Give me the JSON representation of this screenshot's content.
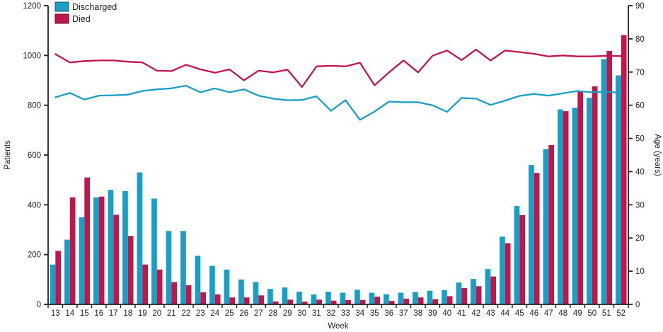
{
  "chart_data": {
    "type": "combo_bar_line",
    "title": "",
    "xlabel": "Week",
    "x": [
      13,
      14,
      15,
      16,
      17,
      18,
      19,
      20,
      21,
      22,
      23,
      24,
      25,
      26,
      27,
      28,
      29,
      30,
      31,
      32,
      33,
      34,
      35,
      36,
      37,
      38,
      39,
      40,
      41,
      42,
      43,
      44,
      45,
      46,
      47,
      48,
      49,
      50,
      51,
      52
    ],
    "left_axis": {
      "label": "Patients",
      "range": [
        0,
        1200
      ],
      "ticks": [
        0,
        200,
        400,
        600,
        800,
        1000,
        1200
      ]
    },
    "right_axis": {
      "label": "Age (years)",
      "range": [
        0,
        90
      ],
      "ticks": [
        0,
        10,
        20,
        30,
        40,
        50,
        60,
        70,
        80,
        90
      ]
    },
    "legend": {
      "position": "top-left",
      "entries": [
        "Discharged",
        "Died"
      ]
    },
    "bar_series": [
      {
        "name": "Discharged",
        "axis": "left",
        "color": "#1b9ec4",
        "values": [
          160,
          260,
          350,
          430,
          460,
          455,
          530,
          425,
          295,
          295,
          195,
          155,
          140,
          100,
          90,
          62,
          68,
          51,
          40,
          51,
          47,
          59,
          47,
          41,
          47,
          50,
          55,
          57,
          88,
          102,
          142,
          272,
          395,
          560,
          624,
          783,
          790,
          830,
          985,
          920
        ]
      },
      {
        "name": "Died",
        "axis": "left",
        "color": "#c0164c",
        "values": [
          215,
          430,
          510,
          433,
          360,
          275,
          160,
          140,
          90,
          77,
          49,
          40,
          28,
          28,
          36,
          12,
          19,
          11,
          19,
          15,
          17,
          18,
          31,
          14,
          23,
          28,
          21,
          33,
          65,
          73,
          112,
          246,
          359,
          528,
          640,
          776,
          854,
          876,
          1018,
          1082
        ]
      }
    ],
    "line_series": [
      {
        "name": "Died",
        "axis": "right",
        "color": "#c0164c",
        "values": [
          75.4,
          72.9,
          73.3,
          73.5,
          73.5,
          73.1,
          72.9,
          70.4,
          70.3,
          72.2,
          70.8,
          69.8,
          70.8,
          67.5,
          70.4,
          69.9,
          70.7,
          65.5,
          71.7,
          71.9,
          71.7,
          72.8,
          66.0,
          69.9,
          73.5,
          69.9,
          74.9,
          76.5,
          73.6,
          76.8,
          73.5,
          76.5,
          76.0,
          75.5,
          74.7,
          75.0,
          74.7,
          74.7,
          74.9,
          74.8
        ]
      },
      {
        "name": "Discharged",
        "axis": "right",
        "color": "#1b9ec4",
        "values": [
          62.4,
          63.7,
          61.7,
          62.9,
          63.0,
          63.2,
          64.3,
          64.8,
          65.1,
          65.9,
          63.9,
          65.1,
          63.9,
          64.8,
          62.9,
          62.0,
          61.5,
          61.6,
          62.7,
          58.3,
          61.5,
          55.6,
          58.1,
          61.1,
          60.9,
          60.9,
          60.0,
          58.0,
          62.2,
          62.0,
          60.1,
          61.4,
          62.8,
          63.4,
          62.9,
          63.6,
          64.3,
          63.9,
          64.1,
          63.7
        ]
      }
    ]
  },
  "colors": {
    "discharged": "#1b9ec4",
    "died": "#c0164c",
    "axis": "#231f20"
  }
}
